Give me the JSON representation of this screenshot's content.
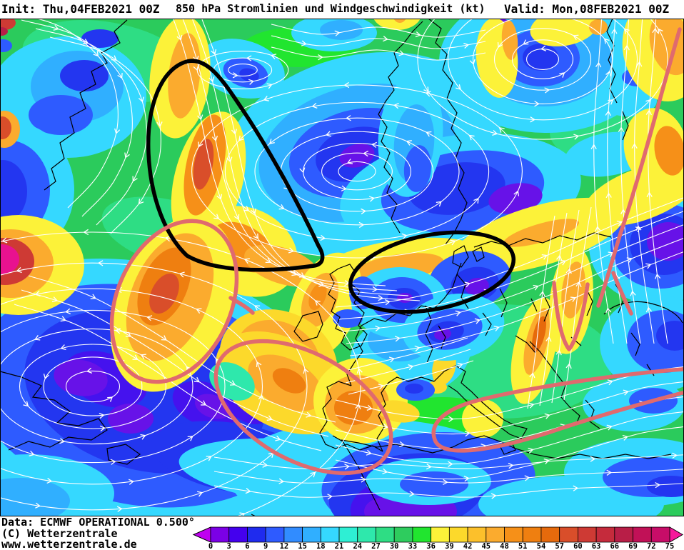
{
  "header": {
    "init_label": "Init: Thu,04FEB2021 00Z",
    "title": "850 hPa Stromlinien und Windgeschwindigkeit (kt)",
    "valid_label": "Valid: Mon,08FEB2021 00Z"
  },
  "map": {
    "description": "ECMWF 850 hPa streamlines and wind speed (kt), North Atlantic and Europe, with hand-drawn black and pink annotations",
    "palette": {
      "purple": "#6712E8",
      "bviolet": "#4512EE",
      "dblue": "#2336F0",
      "blue": "#2E5BFF",
      "mblue": "#319AFF",
      "lblue": "#30AFFF",
      "cyan": "#35D8FF",
      "turq": "#2EEFD4",
      "gcyan": "#2EE8AC",
      "lgreen": "#2EDD84",
      "green": "#2BCB5C",
      "bgreen": "#21E52F",
      "yel": "#FCF239",
      "yel2": "#FCD92B",
      "yel3": "#FCC02B",
      "ora": "#FBAB2E",
      "ora2": "#F69018",
      "ora3": "#EF7F10",
      "dora": "#E66A0C",
      "red": "#D94E2A",
      "red2": "#CE3A34",
      "crim": "#B81E47",
      "mag": "#E8128F"
    },
    "stream_color": "#FFFFFF",
    "coast_color": "#000000",
    "annotation_colors": {
      "black": "#000000",
      "pink": "#E06A6E"
    }
  },
  "footer": {
    "data_line": "Data: ECMWF OPERATIONAL 0.500°",
    "copyright_line": "(C) Wetterzentrale",
    "website": "www.wetterzentrale.de"
  },
  "colorbar": {
    "unit": "kt",
    "tick_labels": [
      "0",
      "3",
      "6",
      "9",
      "12",
      "15",
      "18",
      "21",
      "24",
      "27",
      "30",
      "33",
      "36",
      "39",
      "42",
      "45",
      "48",
      "51",
      "54",
      "57",
      "60",
      "63",
      "66",
      "69",
      "72",
      "75"
    ],
    "segment_colors": [
      "#7B00E6",
      "#4400EE",
      "#1F2BEE",
      "#2E5BFF",
      "#318CFF",
      "#30AFFF",
      "#35D8FF",
      "#2EEFD4",
      "#2EE8AC",
      "#2EDD84",
      "#2ECC5E",
      "#21E52F",
      "#FCF239",
      "#FCD92B",
      "#FCC02B",
      "#FBAB2E",
      "#F69018",
      "#EF7F10",
      "#E66A0C",
      "#D94E2A",
      "#CE3A34",
      "#C52B3C",
      "#B81E47",
      "#C11157",
      "#C70D68"
    ],
    "under_range_color": "#BF00F0",
    "over_range_color": "#F5199B"
  }
}
